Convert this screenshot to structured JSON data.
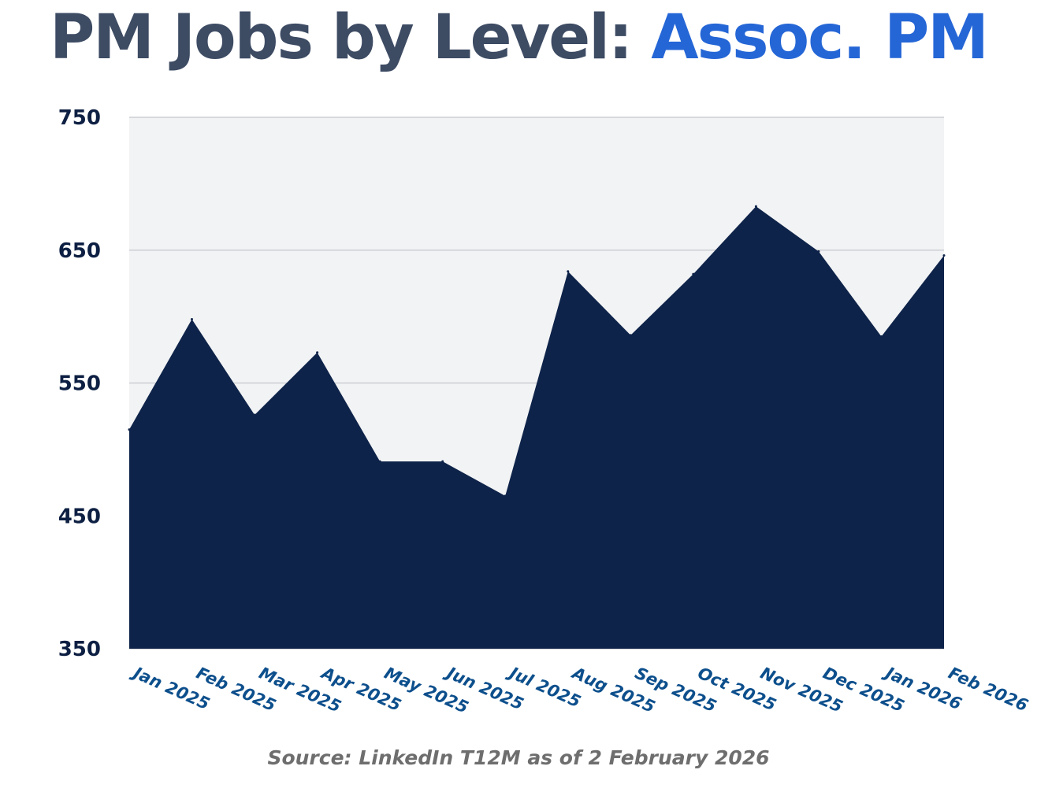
{
  "title": {
    "lead": "PM Jobs by Level:",
    "accent": "Assoc. PM"
  },
  "source": "Source: LinkedIn T12M as of 2 February 2026",
  "colors": {
    "area": "#0e2349",
    "plot_background": "#f2f3f5",
    "grid": "#c4c6cb",
    "title": "#3d4b63",
    "accent": "#2566d6",
    "x_tick": "#0d4f8c",
    "y_tick": "#0d1f42"
  },
  "chart_data": {
    "type": "area",
    "title": "PM Jobs by Level: Assoc. PM",
    "x": [
      "Jan 2025",
      "Feb 2025",
      "Mar 2025",
      "Apr 2025",
      "May 2025",
      "Jun 2025",
      "Jul 2025",
      "Aug 2025",
      "Sep 2025",
      "Oct 2025",
      "Nov 2025",
      "Dec 2025",
      "Jan 2026",
      "Feb 2026"
    ],
    "series": [
      {
        "values": [
          515,
          598,
          526,
          573,
          491,
          491,
          465,
          634,
          586,
          632,
          683,
          649,
          585,
          646
        ]
      }
    ],
    "ylim": [
      350,
      750
    ],
    "yticks": [
      350,
      450,
      550,
      650,
      750
    ],
    "grid": true,
    "legend": "none"
  }
}
